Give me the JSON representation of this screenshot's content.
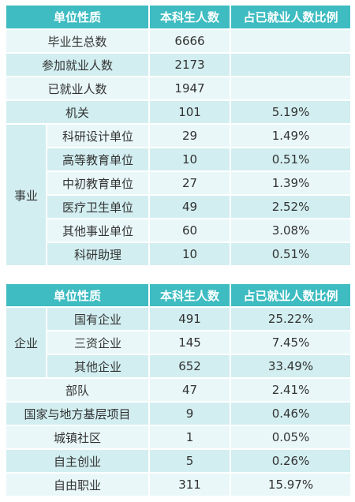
{
  "table1": {
    "headers": [
      "单位性质",
      "本科生人数",
      "占已就业人数比例"
    ],
    "summary_rows": [
      {
        "label": "毕业生总数",
        "count": "6666",
        "ratio": ""
      },
      {
        "label": "参加就业人数",
        "count": "2173",
        "ratio": ""
      },
      {
        "label": "已就业人数",
        "count": "1947",
        "ratio": ""
      },
      {
        "label": "机关",
        "count": "101",
        "ratio": "5.19%"
      }
    ],
    "group_label": "事业",
    "group_rows": [
      {
        "label": "科研设计单位",
        "count": "29",
        "ratio": "1.49%"
      },
      {
        "label": "高等教育单位",
        "count": "10",
        "ratio": "0.51%"
      },
      {
        "label": "中初教育单位",
        "count": "27",
        "ratio": "1.39%"
      },
      {
        "label": "医疗卫生单位",
        "count": "49",
        "ratio": "2.52%"
      },
      {
        "label": "其他事业单位",
        "count": "60",
        "ratio": "3.08%"
      },
      {
        "label": "科研助理",
        "count": "10",
        "ratio": "0.51%"
      }
    ]
  },
  "table2": {
    "headers": [
      "单位性质",
      "本科生人数",
      "占已就业人数比例"
    ],
    "group_label": "企业",
    "group_rows": [
      {
        "label": "国有企业",
        "count": "491",
        "ratio": "25.22%"
      },
      {
        "label": "三资企业",
        "count": "145",
        "ratio": "7.45%"
      },
      {
        "label": "其他企业",
        "count": "652",
        "ratio": "33.49%"
      }
    ],
    "rows": [
      {
        "label": "部队",
        "count": "47",
        "ratio": "2.41%"
      },
      {
        "label": "国家与地方基层项目",
        "count": "9",
        "ratio": "0.46%"
      },
      {
        "label": "城镇社区",
        "count": "1",
        "ratio": "0.05%"
      },
      {
        "label": "自主创业",
        "count": "5",
        "ratio": "0.26%"
      },
      {
        "label": "自由职业",
        "count": "311",
        "ratio": "15.97%"
      }
    ]
  }
}
